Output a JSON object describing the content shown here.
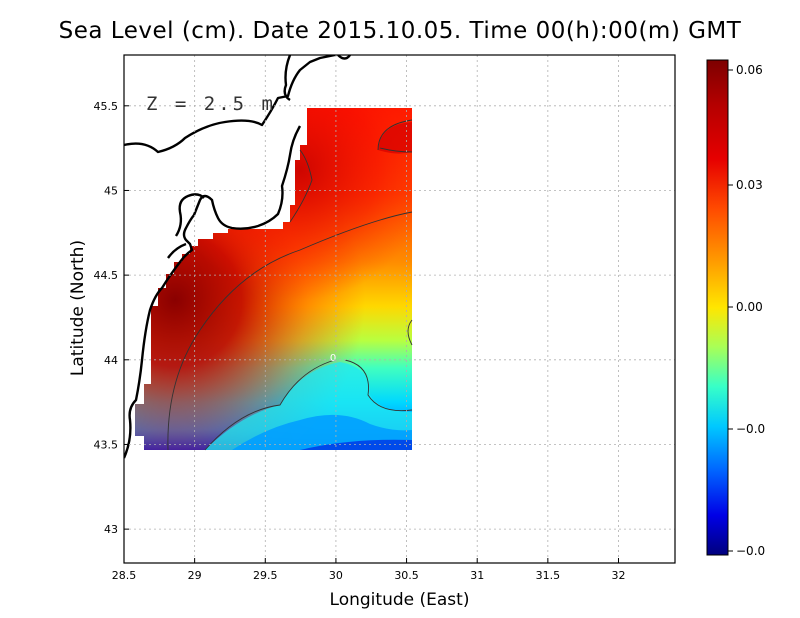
{
  "title": "Sea Level (cm). Date 2015.10.05. Time 00(h):00(m) GMT",
  "annotation": "Z = 2.5 m",
  "x_axis": {
    "label": "Longitude (East)",
    "range": [
      28.5,
      32.4
    ],
    "ticks": [
      28.5,
      29,
      29.5,
      30,
      30.5,
      31,
      31.5,
      32
    ],
    "tick_labels": [
      "28.5",
      "29",
      "29.5",
      "30",
      "30.5",
      "31",
      "31.5",
      "32"
    ]
  },
  "y_axis": {
    "label": "Latitude (North)",
    "range": [
      42.8,
      45.8
    ],
    "ticks": [
      43,
      43.5,
      44,
      44.5,
      45,
      45.5
    ],
    "tick_labels": [
      "43",
      "43.5",
      "44",
      "44.5",
      "45",
      "45.5"
    ]
  },
  "grid": "dotted",
  "data_extent": {
    "lon": [
      28.63,
      30.55
    ],
    "lat": [
      43.49,
      45.5
    ]
  },
  "contour_label": "0",
  "colorbar": {
    "placement": "right",
    "tick_labels": [
      "0.06",
      "0.03",
      "0.00",
      "−0.0",
      "−0.0"
    ],
    "colors": [
      "#7d0000",
      "#e60000",
      "#ff4a00",
      "#ff9600",
      "#ffe600",
      "#a8ff57",
      "#37ffc8",
      "#00c8ff",
      "#0064ff",
      "#0000b4",
      "#00007d"
    ]
  }
}
